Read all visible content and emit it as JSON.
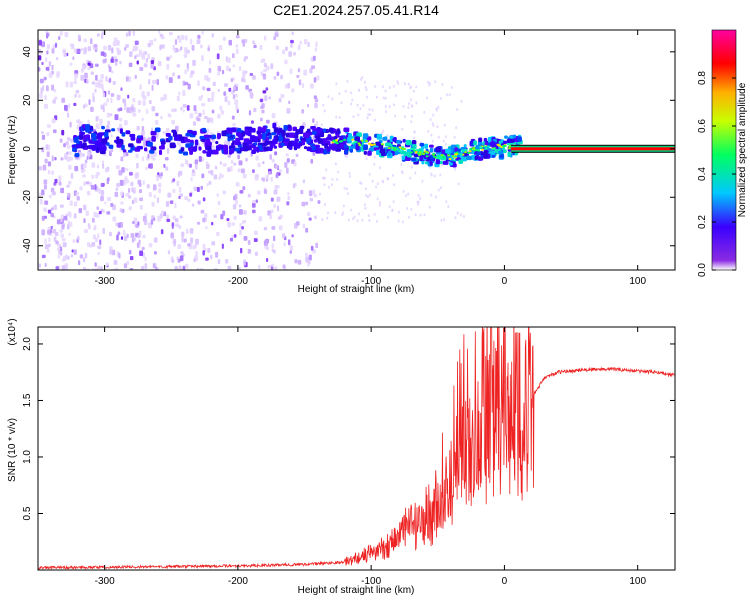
{
  "title": "C2E1.2024.257.05.41.R14",
  "colors": {
    "spectral_low": "#7f00ff",
    "band": "#ff0000",
    "snr_line": "#ee2222"
  },
  "chart_data": [
    {
      "type": "heatmap",
      "title": "",
      "xlabel": "Height of straight line (km)",
      "ylabel": "Frequency (Hz)",
      "xlim": [
        -350,
        128
      ],
      "ylim": [
        -50,
        49
      ],
      "xticks": [
        -300,
        -200,
        -100,
        0,
        100
      ],
      "yticks": [
        -40,
        -20,
        0,
        20,
        40
      ],
      "colorbar": {
        "label": "Normalized spectral amplitude",
        "range": [
          0,
          1
        ],
        "ticks": [
          "0.0",
          "0.2",
          "0.4",
          "0.6",
          "0.8"
        ],
        "colormap": "rainbow (violet-blue-cyan-green-yellow-red-magenta)"
      },
      "center_trace": [
        {
          "x": -320,
          "y": 5
        },
        {
          "x": -300,
          "y": 4
        },
        {
          "x": -250,
          "y": 3
        },
        {
          "x": -200,
          "y": 3
        },
        {
          "x": -175,
          "y": 5
        },
        {
          "x": -150,
          "y": 4
        },
        {
          "x": -120,
          "y": 3
        },
        {
          "x": -100,
          "y": 2
        },
        {
          "x": -80,
          "y": 0
        },
        {
          "x": -60,
          "y": -2
        },
        {
          "x": -45,
          "y": -4
        },
        {
          "x": -35,
          "y": -2
        },
        {
          "x": -20,
          "y": 0
        },
        {
          "x": 0,
          "y": 1
        },
        {
          "x": 10,
          "y": 1
        },
        {
          "x": 128,
          "y": 0
        }
      ],
      "background_noise": {
        "x_range": [
          -350,
          -140
        ],
        "y_range": [
          -50,
          49
        ]
      }
    },
    {
      "type": "line",
      "title": "",
      "xlabel": "Height of straight line (km)",
      "ylabel": "SNR (10 * v/v)",
      "scale_label": "(x10⁴)",
      "xlim": [
        -350,
        128
      ],
      "ylim": [
        0,
        2.15
      ],
      "xticks": [
        -300,
        -200,
        -100,
        0,
        100
      ],
      "yticks": [
        "0.5",
        "1.0",
        "1.5",
        "2.0"
      ],
      "series": [
        {
          "values": [
            {
              "x": -350,
              "y": 0.02
            },
            {
              "x": -250,
              "y": 0.03
            },
            {
              "x": -180,
              "y": 0.04
            },
            {
              "x": -150,
              "y": 0.05
            },
            {
              "x": -120,
              "y": 0.07
            },
            {
              "x": -100,
              "y": 0.15
            },
            {
              "x": -90,
              "y": 0.2
            },
            {
              "x": -80,
              "y": 0.3
            },
            {
              "x": -70,
              "y": 0.4
            },
            {
              "x": -60,
              "y": 0.35
            },
            {
              "x": -50,
              "y": 0.55
            },
            {
              "x": -40,
              "y": 0.8
            },
            {
              "x": -30,
              "y": 1.1
            },
            {
              "x": -20,
              "y": 1.2
            },
            {
              "x": -10,
              "y": 1.3
            },
            {
              "x": 0,
              "y": 1.4
            },
            {
              "x": 5,
              "y": 1.3
            },
            {
              "x": 10,
              "y": 1.2
            },
            {
              "x": 15,
              "y": 1.4
            },
            {
              "x": 22,
              "y": 1.55
            },
            {
              "x": 30,
              "y": 1.7
            },
            {
              "x": 40,
              "y": 1.75
            },
            {
              "x": 60,
              "y": 1.77
            },
            {
              "x": 80,
              "y": 1.78
            },
            {
              "x": 100,
              "y": 1.76
            },
            {
              "x": 115,
              "y": 1.75
            },
            {
              "x": 128,
              "y": 1.72
            }
          ]
        }
      ]
    }
  ]
}
